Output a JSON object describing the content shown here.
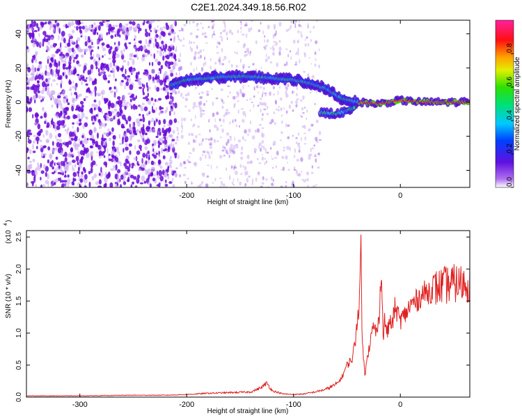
{
  "title": "C2E1.2024.349.18.56.R02",
  "colors": {
    "spectrogram_dense": "#6a0ad8",
    "spectrogram_faint": "#c9a8f0",
    "snr_line": "#e02020",
    "frame": "#000000"
  },
  "chart_data": [
    {
      "type": "heatmap",
      "title": "C2E1.2024.349.18.56.R02",
      "xlabel": "Height of straight line (km)",
      "ylabel": "Frequency (Hz)",
      "xlim": [
        -350,
        65
      ],
      "ylim": [
        -50,
        48
      ],
      "x_ticks": [
        -300,
        -200,
        -100,
        0
      ],
      "x_tick_labels": [
        "-300",
        "-200",
        "-100",
        "0"
      ],
      "y_ticks": [
        -40,
        -20,
        0,
        20,
        40
      ],
      "y_tick_labels": [
        "-40",
        "-20",
        "0",
        "20",
        "40"
      ],
      "colorbar": {
        "label": "Normalized spectral amplitude",
        "range": [
          0,
          1
        ],
        "ticks": [
          0.0,
          0.2,
          0.4,
          0.6,
          0.8
        ],
        "tick_labels": [
          "0.0",
          "0.2",
          "0.4",
          "0.6",
          "0.8"
        ],
        "colormap": "rainbow (magenta-blue-cyan-green-yellow-red-magenta)"
      },
      "noise_region_x": [
        -350,
        -210
      ],
      "faint_noise_region_x": [
        -210,
        -75
      ],
      "signal_track": [
        {
          "x": -215,
          "y": 10
        },
        {
          "x": -200,
          "y": 13
        },
        {
          "x": -180,
          "y": 14
        },
        {
          "x": -160,
          "y": 15
        },
        {
          "x": -140,
          "y": 15
        },
        {
          "x": -120,
          "y": 14
        },
        {
          "x": -100,
          "y": 13
        },
        {
          "x": -85,
          "y": 11
        },
        {
          "x": -70,
          "y": 8
        },
        {
          "x": -55,
          "y": 2
        },
        {
          "x": -40,
          "y": 0
        },
        {
          "x": -20,
          "y": -1
        },
        {
          "x": 0,
          "y": 1
        },
        {
          "x": 20,
          "y": 0
        },
        {
          "x": 65,
          "y": 0
        }
      ],
      "secondary_track": [
        {
          "x": -75,
          "y": -6
        },
        {
          "x": -60,
          "y": -7
        },
        {
          "x": -50,
          "y": -5
        },
        {
          "x": -42,
          "y": -3
        }
      ]
    },
    {
      "type": "line",
      "title": "",
      "xlabel": "Height of straight line (km)",
      "ylabel": "SNR (10 * v/v)",
      "yscale_label": "(x10",
      "yscale_exp": "4",
      "xlim": [
        -350,
        65
      ],
      "ylim": [
        0,
        2.6
      ],
      "x_ticks": [
        -300,
        -200,
        -100,
        0
      ],
      "x_tick_labels": [
        "-300",
        "-200",
        "-100",
        "0"
      ],
      "y_ticks": [
        0.0,
        0.5,
        1.0,
        1.5,
        2.0,
        2.5
      ],
      "y_tick_labels": [
        "0.0",
        "0.5",
        "1.0",
        "1.5",
        "2.0",
        "2.5"
      ],
      "series": [
        {
          "x": [
            -350,
            -300,
            -250,
            -220,
            -200,
            -180,
            -160,
            -140,
            -130,
            -125,
            -120,
            -110,
            -100,
            -90,
            -80,
            -70,
            -60,
            -55,
            -50,
            -45,
            -42,
            -40,
            -38,
            -37,
            -36,
            -35,
            -34,
            -33,
            -32,
            -30,
            -28,
            -25,
            -22,
            -20,
            -18,
            -16,
            -15,
            -12,
            -10,
            -8,
            -5,
            0,
            5,
            10,
            15,
            20,
            30,
            40,
            50,
            65
          ],
          "y": [
            0.02,
            0.02,
            0.03,
            0.03,
            0.04,
            0.06,
            0.07,
            0.08,
            0.15,
            0.22,
            0.1,
            0.05,
            0.04,
            0.05,
            0.08,
            0.12,
            0.2,
            0.3,
            0.5,
            0.6,
            0.9,
            1.3,
            1.5,
            2.6,
            1.2,
            0.7,
            0.5,
            0.3,
            0.6,
            0.7,
            0.9,
            1.1,
            1.0,
            1.2,
            2.05,
            0.9,
            1.2,
            1.0,
            1.2,
            1.1,
            1.4,
            1.2,
            1.3,
            1.45,
            1.5,
            1.6,
            1.68,
            1.74,
            1.77,
            1.78
          ]
        }
      ]
    }
  ]
}
